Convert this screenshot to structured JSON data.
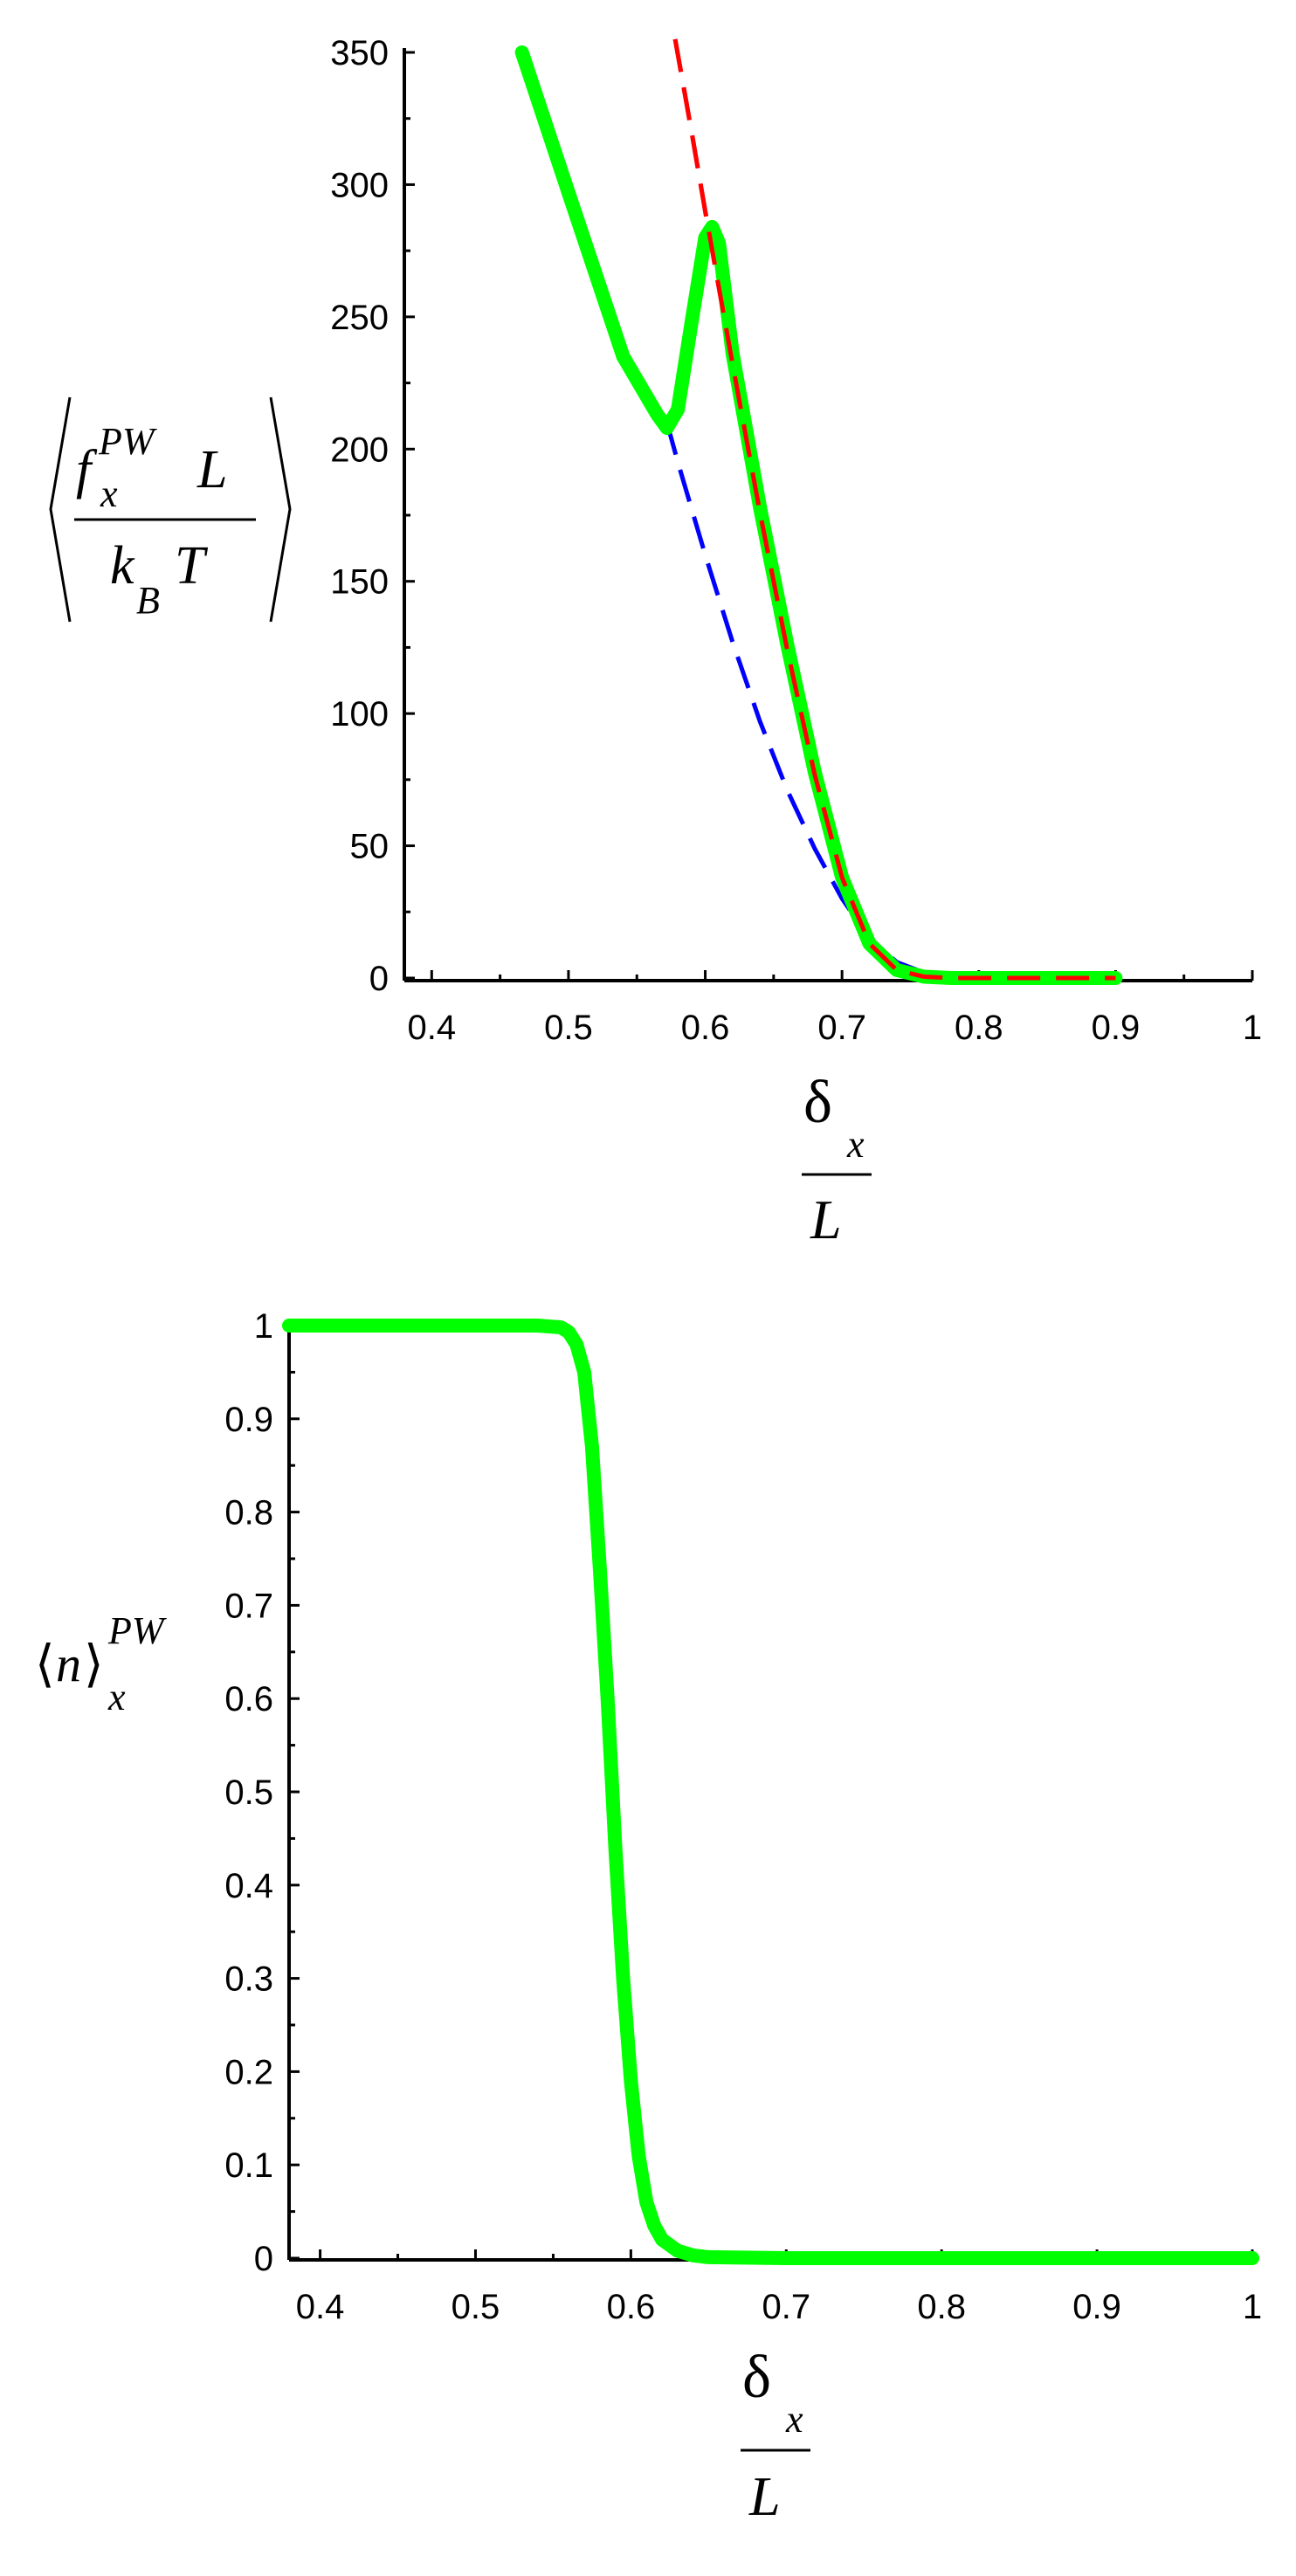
{
  "chart_data": [
    {
      "type": "line",
      "title": "",
      "xlabel": "δx / L",
      "ylabel": "⟨f_x^PW L / (k_B T)⟩",
      "xlim": [
        0.38,
        1.0
      ],
      "ylim": [
        0,
        350
      ],
      "x_ticks": [
        0.4,
        0.5,
        0.6,
        0.7,
        0.8,
        0.9,
        1
      ],
      "x_tick_labels": [
        "0.4",
        "0.5",
        "0.6",
        "0.7",
        "0.8",
        "0.9",
        "1"
      ],
      "y_ticks": [
        0,
        50,
        100,
        150,
        200,
        250,
        300,
        350
      ],
      "y_tick_labels": [
        "0",
        "50",
        "100",
        "150",
        "200",
        "250",
        "300",
        "350"
      ],
      "grid": false,
      "legend": "none",
      "series": [
        {
          "color": "#0000ff",
          "style": "dashed",
          "x": [
            0.572,
            0.58,
            0.6,
            0.62,
            0.64,
            0.66,
            0.68,
            0.7,
            0.72,
            0.74,
            0.76,
            0.78,
            0.8,
            0.85,
            0.9
          ],
          "y": [
            210,
            195,
            160,
            127,
            97,
            71,
            49,
            30,
            15,
            6,
            2,
            0.5,
            0.2,
            0,
            0
          ]
        },
        {
          "color": "#ff0000",
          "style": "dashed",
          "x": [
            0.578,
            0.59,
            0.6,
            0.62,
            0.64,
            0.66,
            0.68,
            0.7,
            0.72,
            0.74,
            0.76,
            0.78,
            0.8,
            0.85,
            0.9
          ],
          "y": [
            355,
            320,
            290,
            232,
            176,
            124,
            77,
            38,
            13,
            3,
            0.5,
            0,
            0,
            0,
            0
          ]
        },
        {
          "color": "#00ff00",
          "style": "solid",
          "x": [
            0.466,
            0.5,
            0.54,
            0.565,
            0.572,
            0.58,
            0.59,
            0.6,
            0.605,
            0.61,
            0.62,
            0.64,
            0.66,
            0.68,
            0.7,
            0.72,
            0.74,
            0.76,
            0.78,
            0.8,
            0.85,
            0.9
          ],
          "y": [
            350,
            297,
            235,
            213,
            208,
            215,
            248,
            280,
            284,
            278,
            236,
            178,
            126,
            78,
            38,
            13,
            3,
            0.5,
            0,
            0,
            0,
            0
          ]
        }
      ]
    },
    {
      "type": "line",
      "title": "",
      "xlabel": "δx / L",
      "ylabel": "⟨n⟩_x^PW",
      "xlim": [
        0.38,
        1.0
      ],
      "ylim": [
        0,
        1
      ],
      "x_ticks": [
        0.4,
        0.5,
        0.6,
        0.7,
        0.8,
        0.9,
        1
      ],
      "x_tick_labels": [
        "0.4",
        "0.5",
        "0.6",
        "0.7",
        "0.8",
        "0.9",
        "1"
      ],
      "y_ticks": [
        0,
        0.1,
        0.2,
        0.3,
        0.4,
        0.5,
        0.6,
        0.7,
        0.8,
        0.9,
        1
      ],
      "y_tick_labels": [
        "0",
        "0.1",
        "0.2",
        "0.3",
        "0.4",
        "0.5",
        "0.6",
        "0.7",
        "0.8",
        "0.9",
        "1"
      ],
      "grid": false,
      "legend": "none",
      "series": [
        {
          "color": "#00ff00",
          "style": "solid",
          "x": [
            0.38,
            0.5,
            0.54,
            0.555,
            0.56,
            0.565,
            0.57,
            0.575,
            0.58,
            0.585,
            0.59,
            0.595,
            0.6,
            0.605,
            0.61,
            0.615,
            0.62,
            0.63,
            0.64,
            0.65,
            0.7,
            0.8,
            0.9,
            1.0
          ],
          "y": [
            1,
            1,
            1,
            0.998,
            0.993,
            0.98,
            0.95,
            0.87,
            0.74,
            0.6,
            0.44,
            0.3,
            0.19,
            0.11,
            0.06,
            0.035,
            0.02,
            0.008,
            0.003,
            0.001,
            0,
            0,
            0,
            0
          ]
        }
      ]
    }
  ]
}
